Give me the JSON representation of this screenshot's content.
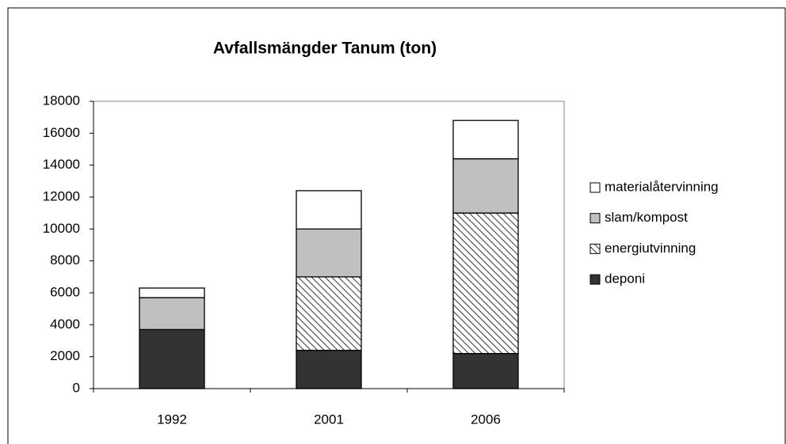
{
  "chart_data": {
    "type": "stacked_bar",
    "title": "Avfallsmängder Tanum (ton)",
    "categories": [
      "1992",
      "2001",
      "2006"
    ],
    "series": [
      {
        "name": "deponi",
        "color": "#333333",
        "values": [
          3700,
          2400,
          2200
        ]
      },
      {
        "name": "energiutvinning",
        "color": "#ffffff",
        "hatch": true,
        "values": [
          0,
          4600,
          8800
        ]
      },
      {
        "name": "slam/kompost",
        "color": "#c0c0c0",
        "values": [
          2000,
          3000,
          3400
        ]
      },
      {
        "name": "materialåtervinning",
        "color": "#ffffff",
        "values": [
          600,
          2400,
          2400
        ]
      }
    ],
    "ylim": [
      0,
      18000
    ],
    "yticks": [
      0,
      2000,
      4000,
      6000,
      8000,
      10000,
      12000,
      14000,
      16000,
      18000
    ],
    "legend": "right"
  }
}
